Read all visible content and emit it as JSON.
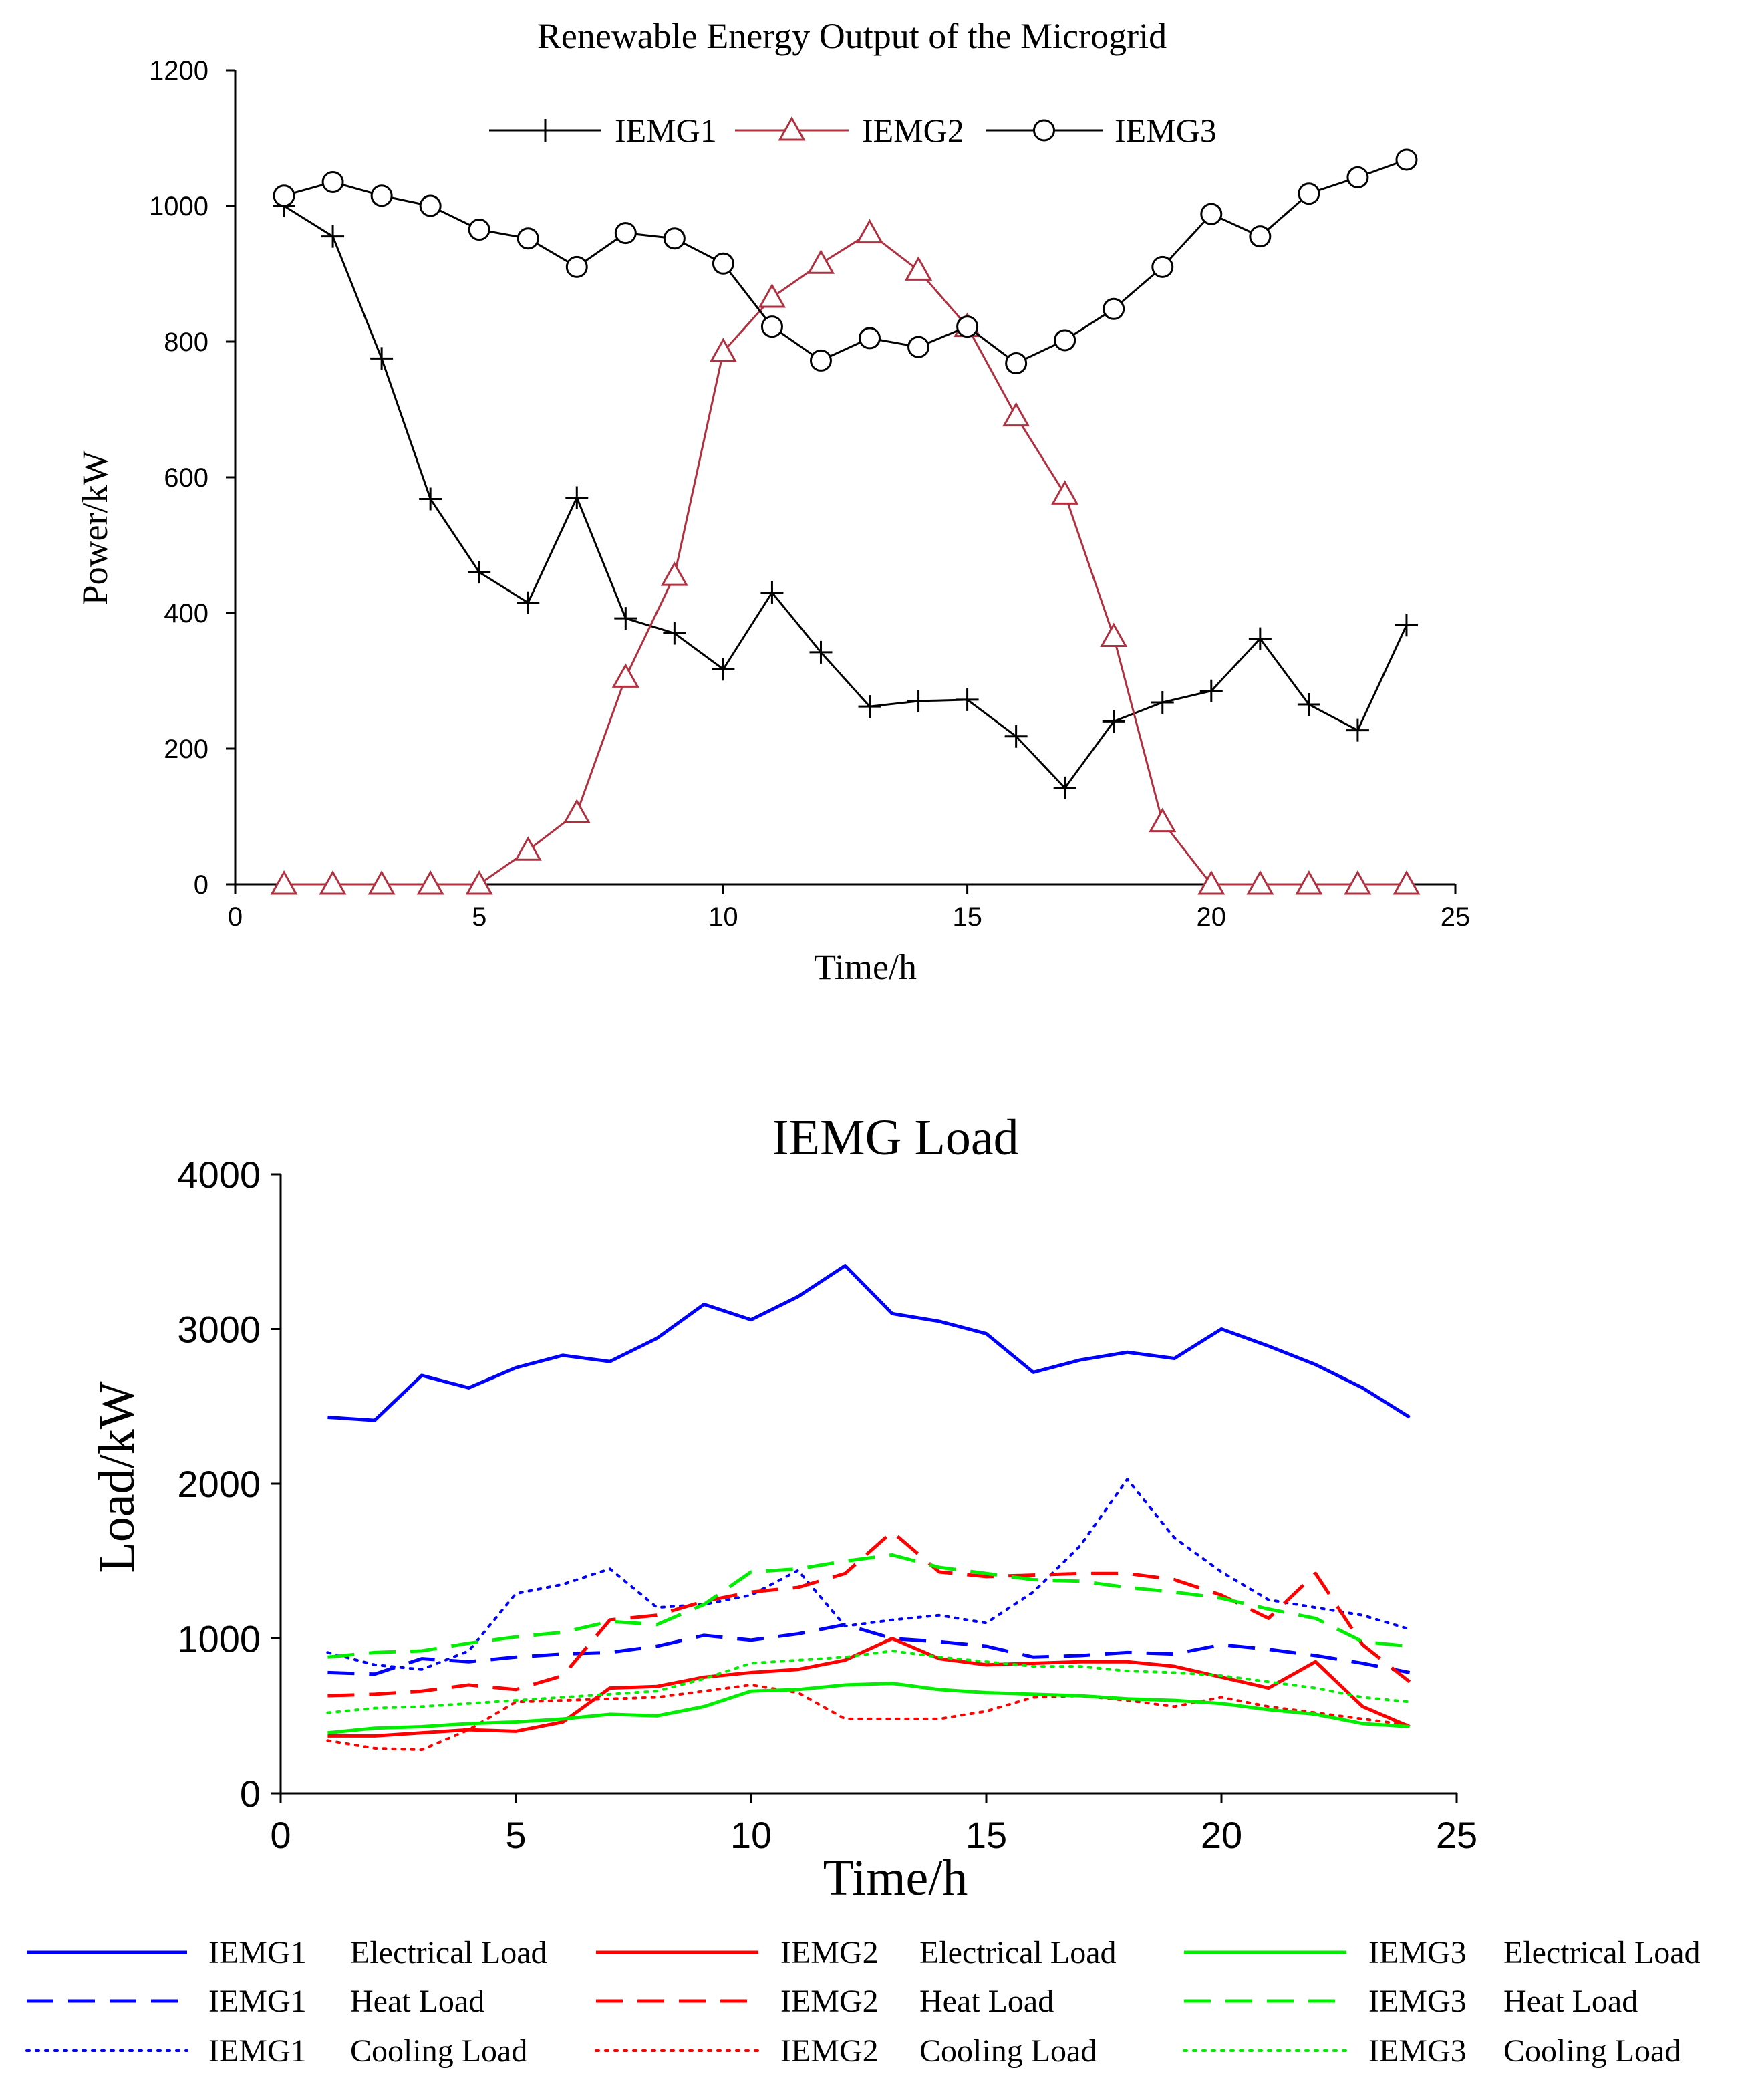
{
  "chart_data": [
    {
      "type": "line",
      "title": "Renewable Energy Output of the Microgrid",
      "xlabel": "Time/h",
      "ylabel": "Power/kW",
      "xlim": [
        0,
        25
      ],
      "ylim": [
        0,
        1200
      ],
      "x_ticks": [
        "0",
        "5",
        "10",
        "15",
        "20",
        "25"
      ],
      "y_ticks": [
        "0",
        "200",
        "400",
        "600",
        "800",
        "1000",
        "1200"
      ],
      "grid": false,
      "legend_position": "top-center",
      "x": [
        1,
        2,
        3,
        4,
        5,
        6,
        7,
        8,
        9,
        10,
        11,
        12,
        13,
        14,
        15,
        16,
        17,
        18,
        19,
        20,
        21,
        22,
        23,
        24
      ],
      "series": [
        {
          "name": "IEMG1",
          "color": "#000000",
          "marker": "plus",
          "values": [
            1000,
            955,
            775,
            568,
            460,
            415,
            570,
            392,
            370,
            317,
            430,
            342,
            262,
            270,
            272,
            218,
            142,
            240,
            268,
            285,
            362,
            265,
            227,
            382
          ]
        },
        {
          "name": "IEMG2",
          "color": "#b03040",
          "marker": "triangle",
          "values": [
            0,
            0,
            0,
            0,
            0,
            50,
            105,
            305,
            455,
            785,
            865,
            915,
            960,
            905,
            822,
            690,
            575,
            365,
            92,
            0,
            0,
            0,
            0,
            0
          ]
        },
        {
          "name": "IEMG3",
          "color": "#000000",
          "marker": "circle",
          "values": [
            1015,
            1035,
            1015,
            1000,
            965,
            952,
            910,
            960,
            952,
            915,
            822,
            772,
            805,
            792,
            822,
            768,
            802,
            848,
            910,
            988,
            955,
            1018,
            1042,
            1068
          ]
        }
      ]
    },
    {
      "type": "line",
      "title": "IEMG Load",
      "xlabel": "Time/h",
      "ylabel": "Load/kW",
      "xlim": [
        0,
        25
      ],
      "ylim": [
        0,
        4000
      ],
      "x_ticks": [
        "0",
        "5",
        "10",
        "15",
        "20",
        "25"
      ],
      "y_ticks": [
        "0",
        "1000",
        "2000",
        "3000",
        "4000"
      ],
      "grid": false,
      "legend_position": "bottom",
      "x": [
        1,
        2,
        3,
        4,
        5,
        6,
        7,
        8,
        9,
        10,
        11,
        12,
        13,
        14,
        15,
        16,
        17,
        18,
        19,
        20,
        21,
        22,
        23,
        24
      ],
      "series": [
        {
          "name": "IEMG1 Electrical Load",
          "group": "IEMG1",
          "load": "Electrical Load",
          "color": "#0000ff",
          "style": "solid",
          "values": [
            2430,
            2410,
            2700,
            2620,
            2750,
            2830,
            2790,
            2940,
            3160,
            3060,
            3210,
            3410,
            3100,
            3050,
            2970,
            2720,
            2800,
            2850,
            2810,
            3000,
            2890,
            2770,
            2620,
            2430
          ]
        },
        {
          "name": "IEMG1 Heat Load",
          "group": "IEMG1",
          "load": "Heat Load",
          "color": "#0000ff",
          "style": "dashed",
          "values": [
            780,
            770,
            870,
            850,
            880,
            900,
            910,
            950,
            1020,
            990,
            1030,
            1090,
            1000,
            980,
            950,
            880,
            890,
            910,
            900,
            960,
            930,
            890,
            840,
            780
          ]
        },
        {
          "name": "IEMG1 Cooling Load",
          "group": "IEMG1",
          "load": "Cooling Load",
          "color": "#0000ff",
          "style": "dotted",
          "values": [
            910,
            830,
            800,
            920,
            1290,
            1350,
            1450,
            1200,
            1220,
            1280,
            1440,
            1080,
            1120,
            1150,
            1100,
            1300,
            1600,
            2030,
            1650,
            1430,
            1250,
            1200,
            1150,
            1060
          ]
        },
        {
          "name": "IEMG2 Electrical Load",
          "group": "IEMG2",
          "load": "Electrical Load",
          "color": "#ff0000",
          "style": "solid",
          "values": [
            370,
            370,
            390,
            410,
            400,
            460,
            680,
            690,
            750,
            780,
            800,
            860,
            1000,
            870,
            830,
            840,
            850,
            850,
            820,
            750,
            680,
            850,
            560,
            430
          ]
        },
        {
          "name": "IEMG2 Heat Load",
          "group": "IEMG2",
          "load": "Heat Load",
          "color": "#ff0000",
          "style": "dashed",
          "values": [
            630,
            640,
            660,
            700,
            670,
            760,
            1120,
            1150,
            1240,
            1300,
            1330,
            1420,
            1690,
            1430,
            1400,
            1410,
            1420,
            1420,
            1380,
            1280,
            1130,
            1420,
            960,
            720
          ]
        },
        {
          "name": "IEMG2 Cooling Load",
          "group": "IEMG2",
          "load": "Cooling Load",
          "color": "#ff0000",
          "style": "dotted",
          "values": [
            340,
            290,
            280,
            410,
            590,
            600,
            610,
            620,
            660,
            700,
            650,
            480,
            480,
            480,
            530,
            620,
            630,
            600,
            560,
            620,
            560,
            520,
            480,
            440
          ]
        },
        {
          "name": "IEMG3 Electrical Load",
          "group": "IEMG3",
          "load": "Electrical Load",
          "color": "#00ee00",
          "style": "solid",
          "values": [
            390,
            420,
            430,
            450,
            460,
            480,
            510,
            500,
            560,
            660,
            670,
            700,
            710,
            670,
            650,
            640,
            630,
            610,
            600,
            580,
            540,
            510,
            450,
            430
          ]
        },
        {
          "name": "IEMG3 Heat Load",
          "group": "IEMG3",
          "load": "Heat Load",
          "color": "#00ee00",
          "style": "dashed",
          "values": [
            880,
            910,
            920,
            970,
            1010,
            1040,
            1110,
            1090,
            1220,
            1430,
            1450,
            1500,
            1540,
            1460,
            1420,
            1380,
            1370,
            1330,
            1300,
            1260,
            1190,
            1130,
            980,
            950
          ]
        },
        {
          "name": "IEMG3 Cooling Load",
          "group": "IEMG3",
          "load": "Cooling Load",
          "color": "#00ee00",
          "style": "dotted",
          "values": [
            520,
            550,
            560,
            580,
            600,
            620,
            640,
            660,
            740,
            840,
            860,
            880,
            920,
            880,
            850,
            820,
            820,
            790,
            780,
            760,
            720,
            680,
            620,
            590
          ]
        }
      ]
    }
  ]
}
